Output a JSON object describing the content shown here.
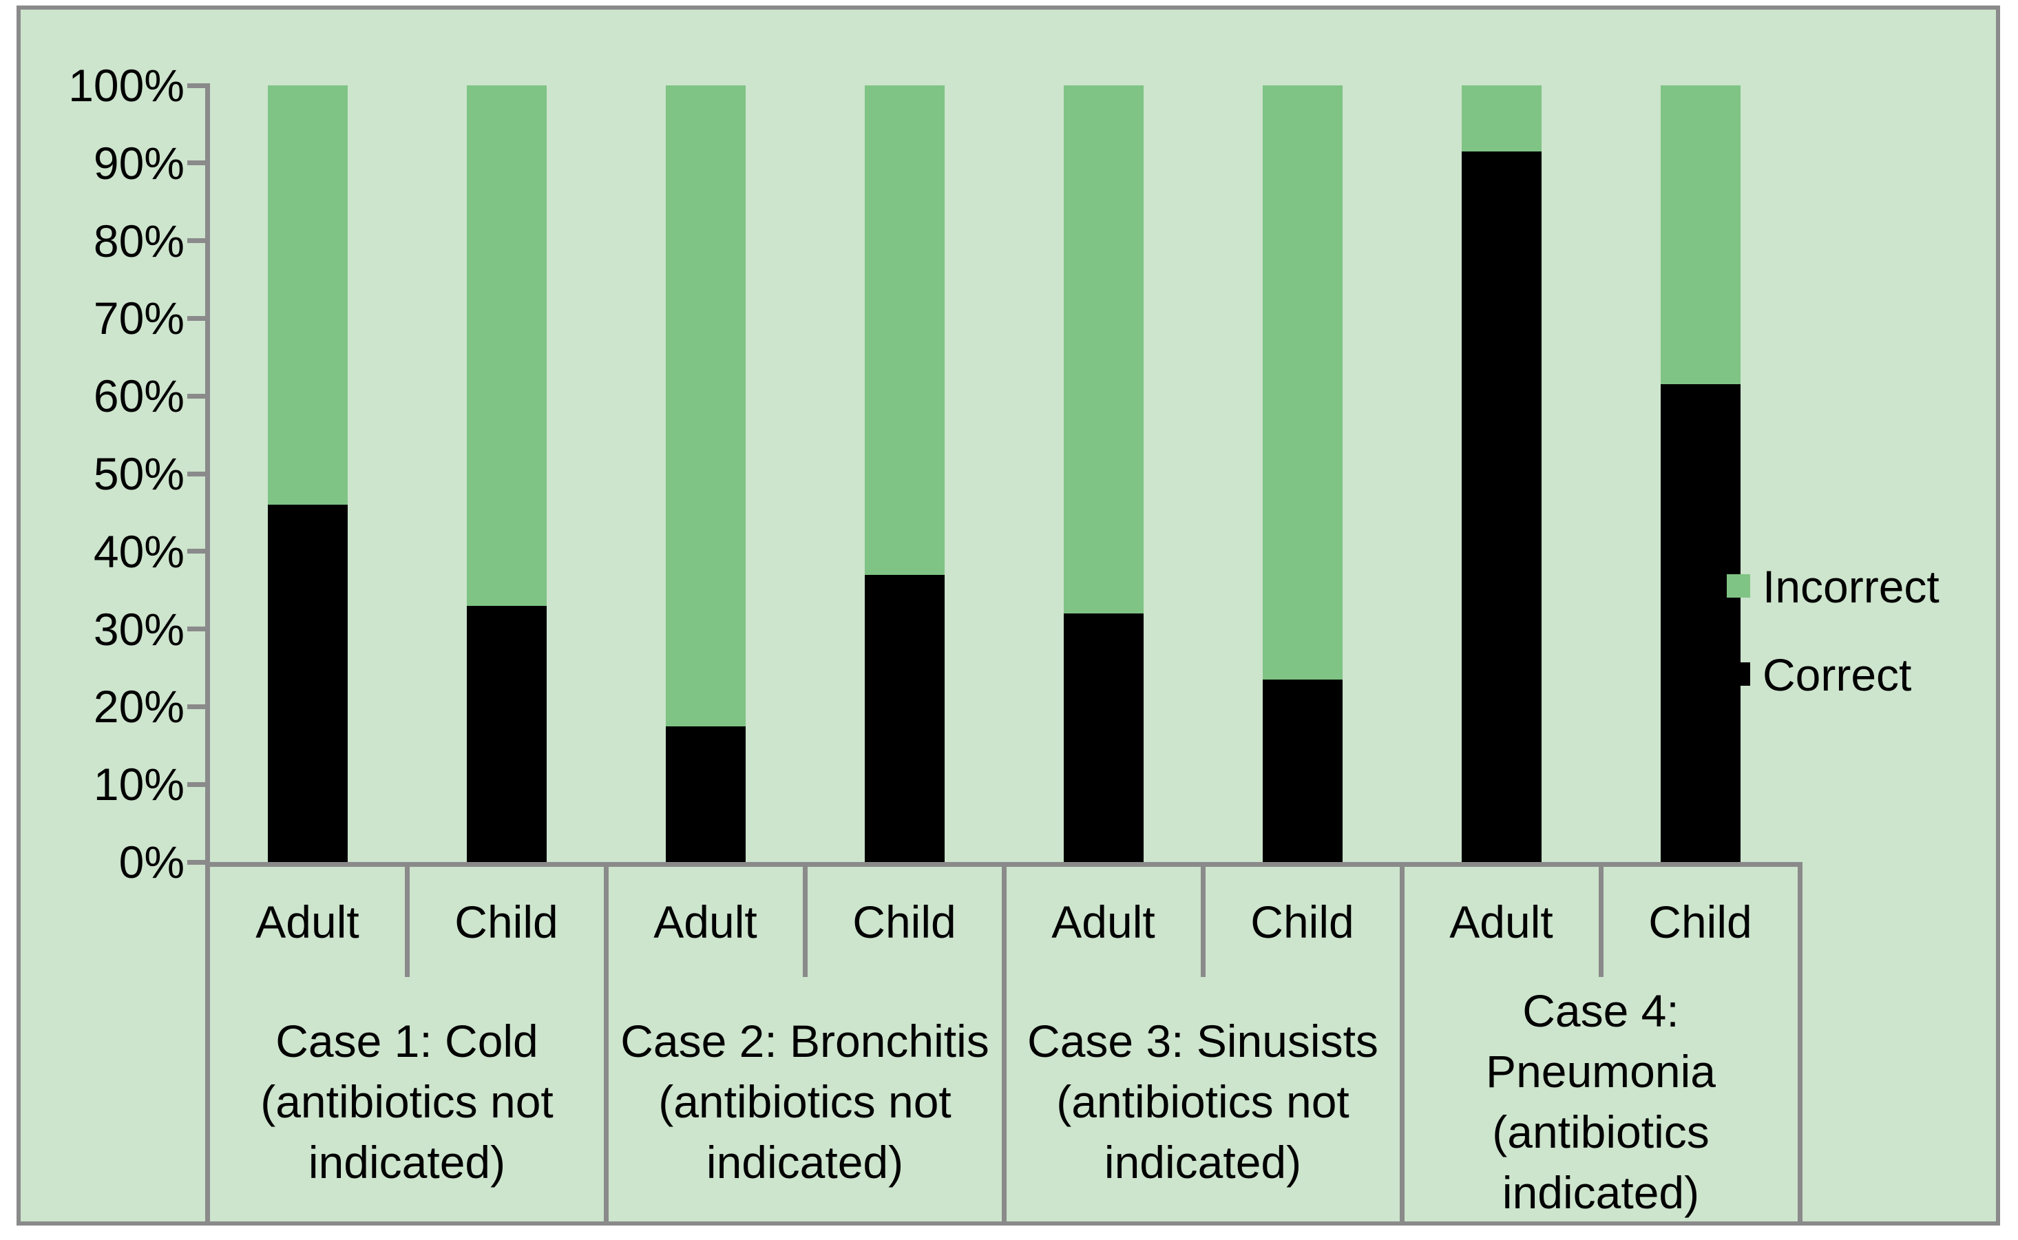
{
  "page": {
    "background": "#ffffff"
  },
  "chart": {
    "background": "#cde4cd",
    "border_color": "#8a8a8a",
    "axis_line_color": "#8a8a8a",
    "text_color": "#000000"
  },
  "y_axis": {
    "tick_labels_top_to_bottom": [
      "100%",
      "90%",
      "80%",
      "70%",
      "60%",
      "50%",
      "40%",
      "30%",
      "20%",
      "10%",
      "0%"
    ]
  },
  "legend": {
    "items": [
      {
        "label": "Incorrect",
        "color": "#7fc484"
      },
      {
        "label": "Correct",
        "color": "#000000"
      }
    ]
  },
  "groups": [
    {
      "lines": [
        "Case 1: Cold",
        "(antibiotics not",
        "indicated)"
      ]
    },
    {
      "lines": [
        "Case 2: Bronchitis",
        "(antibiotics not",
        "indicated)"
      ]
    },
    {
      "lines": [
        "Case 3: Sinusists",
        "(antibiotics not",
        "indicated)"
      ]
    },
    {
      "lines": [
        "Case 4:",
        "Pneumonia",
        "(antibiotics",
        "indicated)"
      ]
    }
  ],
  "columns": [
    {
      "group": 0,
      "label": "Adult",
      "correct_pct": 46,
      "incorrect_pct": 54
    },
    {
      "group": 0,
      "label": "Child",
      "correct_pct": 33,
      "incorrect_pct": 67
    },
    {
      "group": 1,
      "label": "Adult",
      "correct_pct": 17.5,
      "incorrect_pct": 82.5
    },
    {
      "group": 1,
      "label": "Child",
      "correct_pct": 37,
      "incorrect_pct": 63
    },
    {
      "group": 2,
      "label": "Adult",
      "correct_pct": 32,
      "incorrect_pct": 68
    },
    {
      "group": 2,
      "label": "Child",
      "correct_pct": 23.5,
      "incorrect_pct": 76.5
    },
    {
      "group": 3,
      "label": "Adult",
      "correct_pct": 91.5,
      "incorrect_pct": 8.5
    },
    {
      "group": 3,
      "label": "Child",
      "correct_pct": 61.5,
      "incorrect_pct": 38.5
    }
  ],
  "chart_data": {
    "type": "bar",
    "subtype": "100%-stacked-column",
    "title": "",
    "x_groups": [
      "Case 1: Cold (antibiotics not indicated)",
      "Case 2: Bronchitis (antibiotics not indicated)",
      "Case 3: Sinusists (antibiotics not indicated)",
      "Case 4: Pneumonia (antibiotics indicated)"
    ],
    "categories": [
      "Adult",
      "Child",
      "Adult",
      "Child",
      "Adult",
      "Child",
      "Adult",
      "Child"
    ],
    "series": [
      {
        "name": "Correct",
        "color": "#000000",
        "values": [
          46,
          33,
          17.5,
          37,
          32,
          23.5,
          91.5,
          61.5
        ]
      },
      {
        "name": "Incorrect",
        "color": "#7fc484",
        "values": [
          54,
          67,
          82.5,
          63,
          68,
          76.5,
          8.5,
          38.5
        ]
      }
    ],
    "ylim": [
      0,
      100
    ],
    "yticks": [
      "0%",
      "10%",
      "20%",
      "30%",
      "40%",
      "50%",
      "60%",
      "70%",
      "80%",
      "90%",
      "100%"
    ],
    "ylabel": "",
    "xlabel": "",
    "grid": false,
    "legend_position": "right-middle"
  }
}
